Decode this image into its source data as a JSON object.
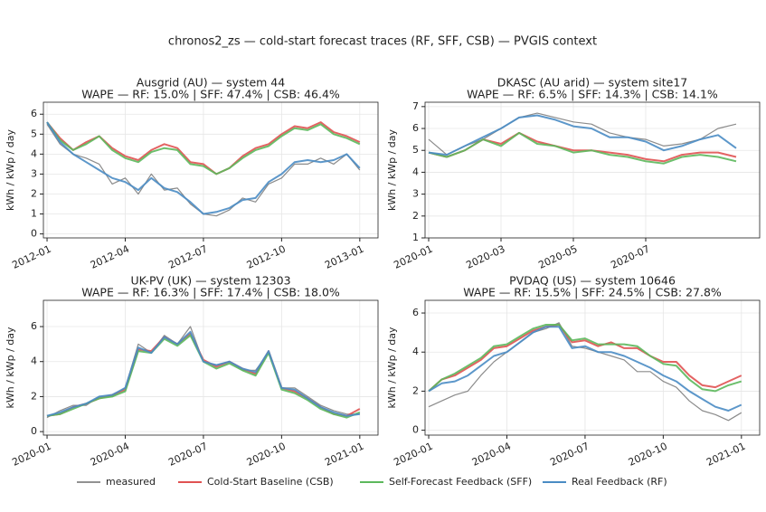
{
  "title": "chronos2_zs — cold-start forecast traces (RF, SFF, CSB) — PVGIS context",
  "chart_data": [
    {
      "type": "line",
      "title": "Ausgrid (AU) — system 44",
      "subtitle": "WAPE — RF: 15.0% | SFF: 47.4% | CSB: 46.4%",
      "ylabel": "kWh / kWp / day",
      "grid": true,
      "x": [
        0,
        0.5,
        1,
        1.5,
        2,
        2.5,
        3,
        3.5,
        4,
        4.5,
        5,
        5.5,
        6,
        6.5,
        7,
        7.5,
        8,
        8.5,
        9,
        9.5,
        10,
        10.5,
        11,
        11.5,
        12
      ],
      "xlim": [
        -0.14,
        12.7
      ],
      "xticks": [
        {
          "value": 0,
          "label": "2012-01"
        },
        {
          "value": 3,
          "label": "2012-04"
        },
        {
          "value": 6,
          "label": "2012-07"
        },
        {
          "value": 9,
          "label": "2012-10"
        },
        {
          "value": 12,
          "label": "2013-01"
        }
      ],
      "ylim": [
        -0.2,
        6.6
      ],
      "yticks": [
        0,
        1,
        2,
        3,
        4,
        5,
        6
      ],
      "series": [
        {
          "name": "measured",
          "color": "#6e6e6e",
          "values": [
            5.5,
            4.5,
            4.0,
            3.8,
            3.5,
            2.5,
            2.8,
            2.0,
            3.0,
            2.2,
            2.3,
            1.5,
            1.0,
            0.9,
            1.2,
            1.8,
            1.6,
            2.5,
            2.8,
            3.5,
            3.5,
            3.8,
            3.5,
            4.0,
            3.2
          ]
        },
        {
          "name": "Cold-Start Baseline (CSB)",
          "color": "#e05252",
          "values": [
            5.6,
            4.8,
            4.2,
            4.6,
            4.9,
            4.3,
            3.9,
            3.7,
            4.2,
            4.5,
            4.3,
            3.6,
            3.5,
            3.0,
            3.3,
            3.9,
            4.3,
            4.5,
            5.0,
            5.4,
            5.3,
            5.6,
            5.1,
            4.9,
            4.6
          ]
        },
        {
          "name": "Self-Forecast Feedback (SFF)",
          "color": "#5cb85c",
          "values": [
            5.6,
            4.7,
            4.2,
            4.5,
            4.9,
            4.2,
            3.8,
            3.6,
            4.1,
            4.3,
            4.2,
            3.5,
            3.4,
            3.0,
            3.3,
            3.8,
            4.2,
            4.4,
            4.9,
            5.3,
            5.2,
            5.5,
            5.0,
            4.8,
            4.5
          ]
        },
        {
          "name": "Real Feedback (RF)",
          "color": "#4a8cc4",
          "values": [
            5.6,
            4.6,
            4.0,
            3.6,
            3.2,
            2.8,
            2.6,
            2.2,
            2.8,
            2.3,
            2.1,
            1.6,
            1.0,
            1.1,
            1.3,
            1.7,
            1.8,
            2.6,
            3.0,
            3.6,
            3.7,
            3.6,
            3.7,
            4.0,
            3.3
          ]
        }
      ]
    },
    {
      "type": "line",
      "title": "DKASC (AU arid) — system site17",
      "subtitle": "WAPE — RF: 6.5% | SFF: 14.3% | CSB: 14.1%",
      "ylabel": "kWh / kWp / day",
      "grid": true,
      "x": [
        0,
        0.5,
        1,
        1.5,
        2,
        2.5,
        3,
        3.5,
        4,
        4.5,
        5,
        5.5,
        6,
        6.5,
        7,
        7.5,
        8,
        8.5
      ],
      "xlim": [
        -0.1,
        9.15
      ],
      "xticks": [
        {
          "value": 0,
          "label": "2020-01"
        },
        {
          "value": 2,
          "label": "2020-03"
        },
        {
          "value": 4,
          "label": "2020-05"
        },
        {
          "value": 6,
          "label": "2020-07"
        }
      ],
      "ylim": [
        1.0,
        7.2
      ],
      "yticks": [
        1,
        2,
        3,
        4,
        5,
        6,
        7
      ],
      "series": [
        {
          "name": "measured",
          "color": "#6e6e6e",
          "values": [
            5.5,
            4.8,
            5.2,
            5.5,
            6.0,
            6.5,
            6.7,
            6.5,
            6.3,
            6.2,
            5.8,
            5.6,
            5.5,
            5.2,
            5.3,
            5.5,
            6.0,
            6.2
          ]
        },
        {
          "name": "Cold-Start Baseline (CSB)",
          "color": "#e05252",
          "values": [
            4.9,
            4.7,
            5.0,
            5.5,
            5.3,
            5.8,
            5.4,
            5.2,
            5.0,
            5.0,
            4.9,
            4.8,
            4.6,
            4.5,
            4.8,
            4.9,
            4.9,
            4.7
          ]
        },
        {
          "name": "Self-Forecast Feedback (SFF)",
          "color": "#5cb85c",
          "values": [
            4.9,
            4.7,
            5.0,
            5.5,
            5.2,
            5.8,
            5.3,
            5.2,
            4.9,
            5.0,
            4.8,
            4.7,
            4.5,
            4.4,
            4.7,
            4.8,
            4.7,
            4.5
          ]
        },
        {
          "name": "Real Feedback (RF)",
          "color": "#4a8cc4",
          "values": [
            4.9,
            4.8,
            5.2,
            5.6,
            6.0,
            6.5,
            6.6,
            6.4,
            6.1,
            6.0,
            5.6,
            5.6,
            5.4,
            5.0,
            5.2,
            5.5,
            5.7,
            5.1
          ]
        }
      ]
    },
    {
      "type": "line",
      "title": "UK-PV (UK) — system 12303",
      "subtitle": "WAPE — RF: 16.3% | SFF: 17.4% | CSB: 18.0%",
      "ylabel": "kWh / kWp / day",
      "grid": true,
      "x": [
        0,
        0.5,
        1,
        1.5,
        2,
        2.5,
        3,
        3.5,
        4,
        4.5,
        5,
        5.5,
        6,
        6.5,
        7,
        7.5,
        8,
        8.5,
        9,
        9.5,
        10,
        10.5,
        11,
        11.5,
        12
      ],
      "xlim": [
        -0.14,
        12.7
      ],
      "xticks": [
        {
          "value": 0,
          "label": "2020-01"
        },
        {
          "value": 3,
          "label": "2020-04"
        },
        {
          "value": 6,
          "label": "2020-07"
        },
        {
          "value": 9,
          "label": "2020-10"
        },
        {
          "value": 12,
          "label": "2021-01"
        }
      ],
      "ylim": [
        -0.2,
        7.5
      ],
      "yticks": [
        0,
        2,
        4,
        6
      ],
      "series": [
        {
          "name": "measured",
          "color": "#6e6e6e",
          "values": [
            0.8,
            1.2,
            1.5,
            1.5,
            2.0,
            2.0,
            2.5,
            5.0,
            4.5,
            5.5,
            5.0,
            6.0,
            4.0,
            3.8,
            4.0,
            3.5,
            3.5,
            4.5,
            2.5,
            2.5,
            2.0,
            1.5,
            1.2,
            1.0,
            1.0
          ]
        },
        {
          "name": "Cold-Start Baseline (CSB)",
          "color": "#e05252",
          "values": [
            0.9,
            1.0,
            1.4,
            1.6,
            1.9,
            2.1,
            2.4,
            4.7,
            4.6,
            5.4,
            5.0,
            5.6,
            4.1,
            3.7,
            4.0,
            3.6,
            3.3,
            4.6,
            2.5,
            2.3,
            1.9,
            1.4,
            1.0,
            0.9,
            1.3
          ]
        },
        {
          "name": "Self-Forecast Feedback (SFF)",
          "color": "#5cb85c",
          "values": [
            0.9,
            1.0,
            1.3,
            1.6,
            1.9,
            2.0,
            2.3,
            4.6,
            4.5,
            5.3,
            4.9,
            5.5,
            4.0,
            3.6,
            3.9,
            3.5,
            3.2,
            4.5,
            2.4,
            2.2,
            1.8,
            1.3,
            1.0,
            0.8,
            1.1
          ]
        },
        {
          "name": "Real Feedback (RF)",
          "color": "#4a8cc4",
          "values": [
            0.9,
            1.1,
            1.4,
            1.6,
            2.0,
            2.1,
            2.5,
            4.8,
            4.5,
            5.4,
            5.0,
            5.7,
            4.0,
            3.8,
            4.0,
            3.6,
            3.4,
            4.6,
            2.5,
            2.4,
            1.9,
            1.4,
            1.1,
            0.9,
            1.0
          ]
        }
      ]
    },
    {
      "type": "line",
      "title": "PVDAQ (US) — system 10646",
      "subtitle": "WAPE — RF: 15.5% | SFF: 24.5% | CSB: 27.8%",
      "ylabel": "kWh / kWp / day",
      "grid": true,
      "x": [
        0,
        0.5,
        1,
        1.5,
        2,
        2.5,
        3,
        3.5,
        4,
        4.5,
        5,
        5.5,
        6,
        6.5,
        7,
        7.5,
        8,
        8.5,
        9,
        9.5,
        10,
        10.5,
        11,
        11.5,
        12
      ],
      "xlim": [
        -0.14,
        12.7
      ],
      "xticks": [
        {
          "value": 0,
          "label": "2020-01"
        },
        {
          "value": 3,
          "label": "2020-04"
        },
        {
          "value": 6,
          "label": "2020-07"
        },
        {
          "value": 9,
          "label": "2020-10"
        },
        {
          "value": 12,
          "label": "2021-01"
        }
      ],
      "ylim": [
        -0.25,
        6.65
      ],
      "yticks": [
        0,
        2,
        4,
        6
      ],
      "series": [
        {
          "name": "measured",
          "color": "#6e6e6e",
          "values": [
            1.2,
            1.5,
            1.8,
            2.0,
            2.8,
            3.5,
            4.0,
            4.5,
            5.0,
            5.2,
            5.5,
            4.3,
            4.2,
            4.0,
            3.8,
            3.6,
            3.0,
            3.0,
            2.5,
            2.2,
            1.5,
            1.0,
            0.8,
            0.5,
            0.9
          ]
        },
        {
          "name": "Cold-Start Baseline (CSB)",
          "color": "#e05252",
          "values": [
            2.0,
            2.6,
            2.8,
            3.2,
            3.6,
            4.2,
            4.3,
            4.7,
            5.1,
            5.3,
            5.4,
            4.5,
            4.6,
            4.3,
            4.5,
            4.2,
            4.2,
            3.8,
            3.5,
            3.5,
            2.8,
            2.3,
            2.2,
            2.5,
            2.8
          ]
        },
        {
          "name": "Self-Forecast Feedback (SFF)",
          "color": "#5cb85c",
          "values": [
            2.0,
            2.6,
            2.9,
            3.3,
            3.7,
            4.3,
            4.4,
            4.8,
            5.2,
            5.4,
            5.4,
            4.6,
            4.7,
            4.4,
            4.4,
            4.4,
            4.3,
            3.8,
            3.4,
            3.3,
            2.6,
            2.1,
            2.0,
            2.3,
            2.5
          ]
        },
        {
          "name": "Real Feedback (RF)",
          "color": "#4a8cc4",
          "values": [
            2.0,
            2.4,
            2.5,
            2.8,
            3.3,
            3.8,
            4.0,
            4.5,
            5.0,
            5.3,
            5.3,
            4.2,
            4.3,
            4.0,
            4.0,
            3.8,
            3.5,
            3.2,
            2.8,
            2.5,
            2.0,
            1.6,
            1.2,
            1.0,
            1.3
          ]
        }
      ]
    }
  ]
}
